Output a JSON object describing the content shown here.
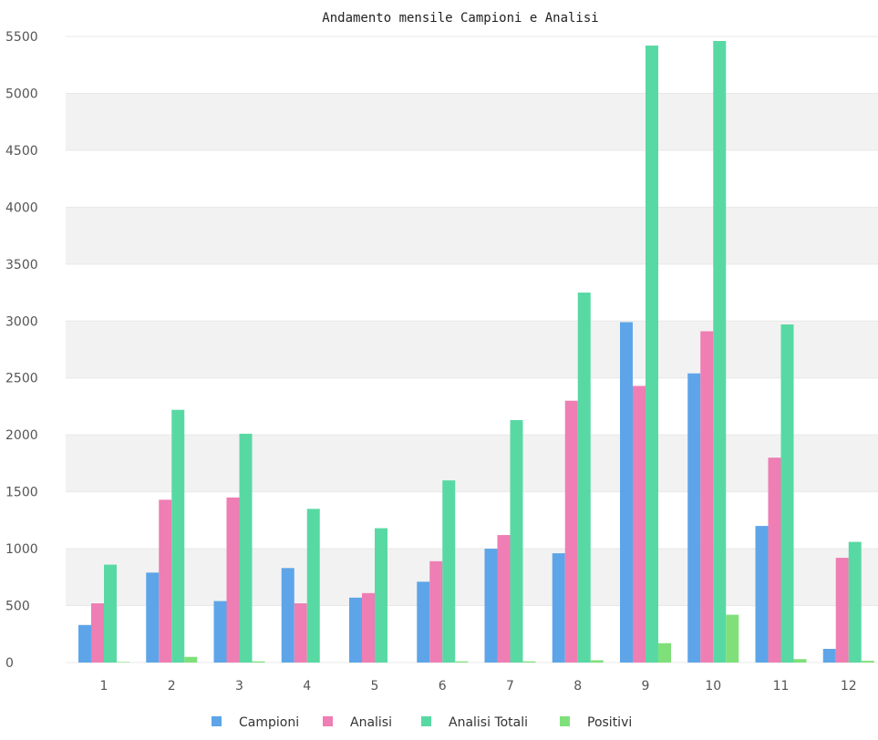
{
  "chart_data": {
    "type": "bar",
    "title": "Andamento mensile Campioni e Analisi",
    "xlabel": "",
    "ylabel": "",
    "categories": [
      "1",
      "2",
      "3",
      "4",
      "5",
      "6",
      "7",
      "8",
      "9",
      "10",
      "11",
      "12"
    ],
    "ylim": [
      0,
      5500
    ],
    "yticks": [
      0,
      500,
      1000,
      1500,
      2000,
      2500,
      3000,
      3500,
      4000,
      4500,
      5000,
      5500
    ],
    "grid": "alternating horizontal bands",
    "legend_position": "bottom",
    "series": [
      {
        "name": "Campioni",
        "color": "#5da5e8",
        "values": [
          330,
          790,
          540,
          830,
          570,
          710,
          1000,
          960,
          2990,
          2540,
          1200,
          120
        ]
      },
      {
        "name": "Analisi",
        "color": "#ee7eb3",
        "values": [
          520,
          1430,
          1450,
          520,
          610,
          890,
          1120,
          2300,
          2430,
          2910,
          1800,
          920
        ]
      },
      {
        "name": "Analisi Totali",
        "color": "#58d9a3",
        "values": [
          860,
          2220,
          2010,
          1350,
          1180,
          1600,
          2130,
          3250,
          5420,
          5460,
          2970,
          1060
        ]
      },
      {
        "name": "Positivi",
        "color": "#7fe07a",
        "values": [
          5,
          50,
          10,
          0,
          0,
          10,
          10,
          20,
          170,
          420,
          30,
          15
        ]
      }
    ]
  }
}
